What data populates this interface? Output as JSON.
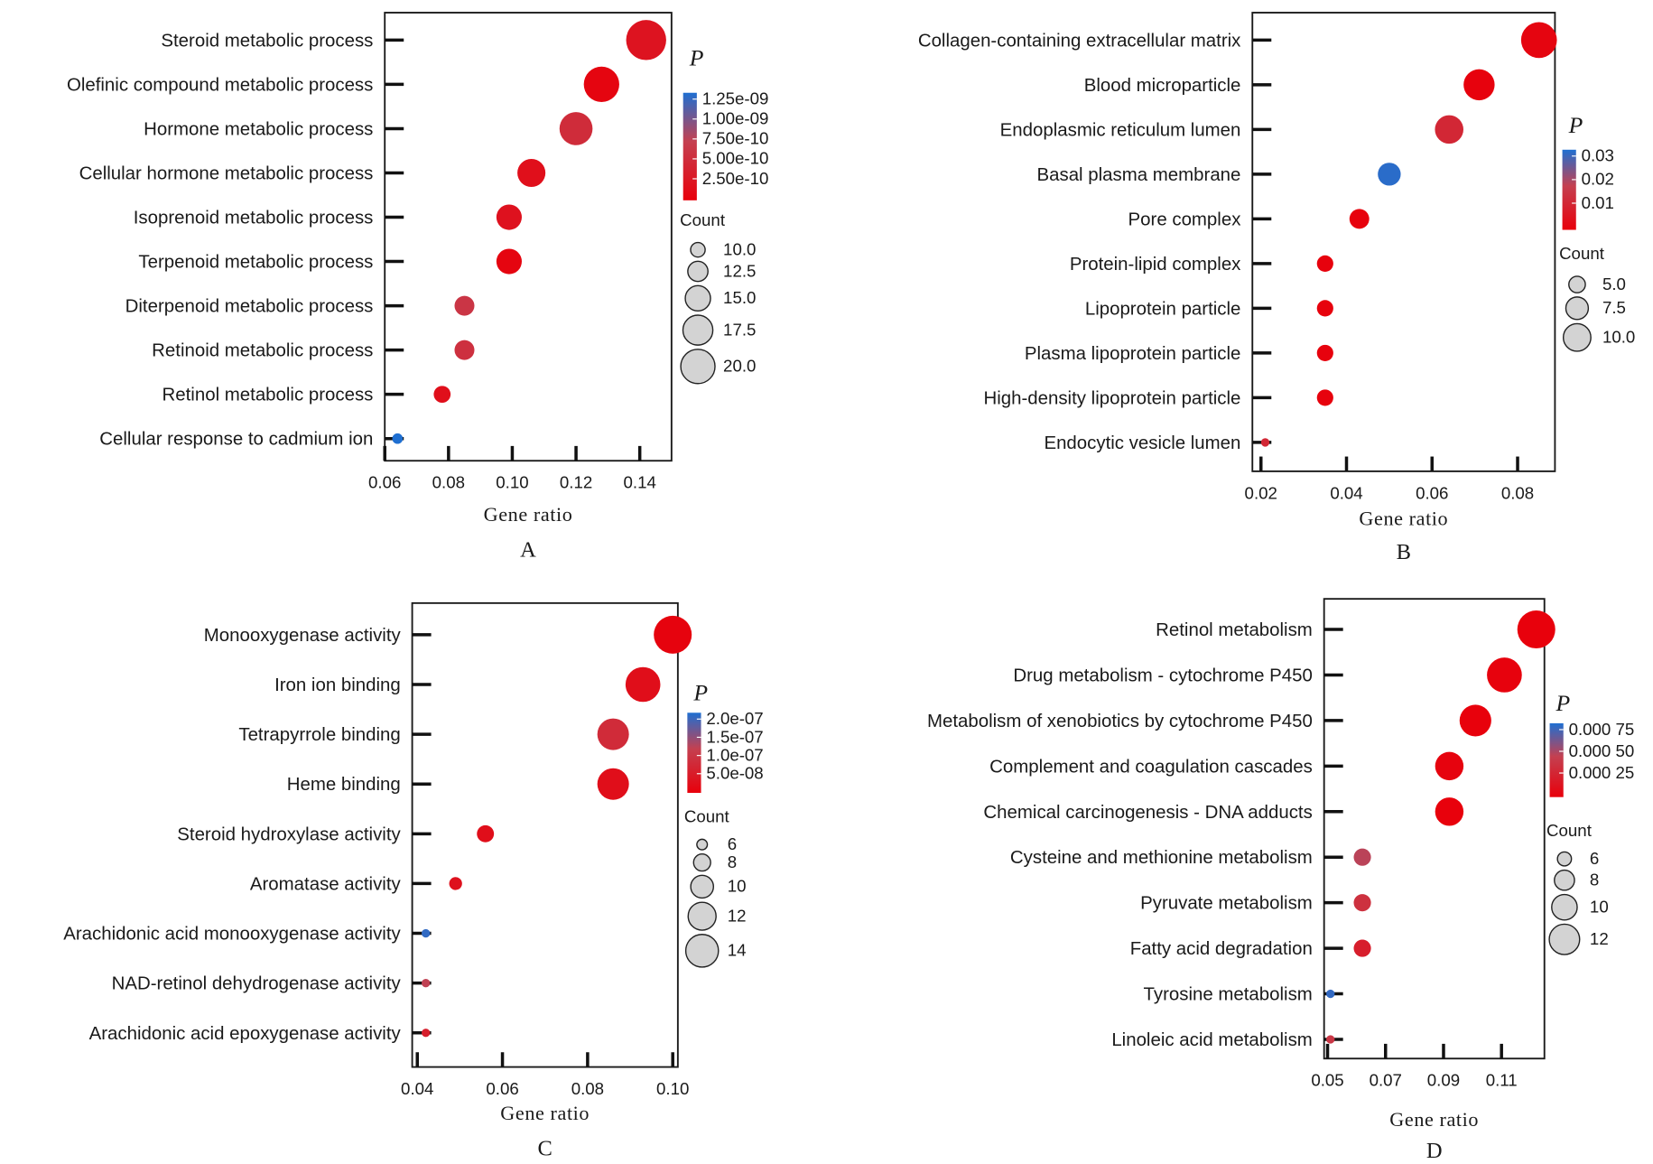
{
  "chart_data": [
    {
      "type": "scatter",
      "subtype": "bubble",
      "panel_label": "A",
      "xlabel": "Gene ratio",
      "ylabel": "",
      "xlim": [
        0.06,
        0.145
      ],
      "xticks": [
        0.06,
        0.08,
        0.1,
        0.12,
        0.14
      ],
      "xtick_labels": [
        "0.06",
        "0.08",
        "0.10",
        "0.12",
        "0.14"
      ],
      "categories": [
        "Steroid metabolic process",
        "Olefinic compound metabolic process",
        "Hormone metabolic process",
        "Cellular hormone metabolic process",
        "Isoprenoid metabolic process",
        "Terpenoid metabolic process",
        "Diterpenoid metabolic process",
        "Retinoid metabolic process",
        "Retinol metabolic process",
        "Cellular response to cadmium ion"
      ],
      "gene_ratio": [
        0.142,
        0.128,
        0.12,
        0.106,
        0.099,
        0.099,
        0.085,
        0.085,
        0.078,
        0.064
      ],
      "count": [
        20,
        18,
        17,
        15,
        14,
        14,
        12,
        12,
        11,
        9
      ],
      "p_value": [
        3e-10,
        1.5e-10,
        5.5e-10,
        2.5e-10,
        2.8e-10,
        1.5e-10,
        6.5e-10,
        6e-10,
        2.5e-10,
        1.3e-09
      ],
      "color_legend": {
        "title": "P",
        "ticks": [
          "1.25e-09",
          "1.00e-09",
          "7.50e-10",
          "5.00e-10",
          "2.50e-10"
        ],
        "range": [
          1e-10,
          1.3e-09
        ],
        "low_color": "#e8000b",
        "high_color": "#1f6fd1"
      },
      "size_legend": {
        "title": "Count",
        "values": [
          10.0,
          12.5,
          15.0,
          17.5,
          20.0
        ],
        "labels": [
          "10.0",
          "12.5",
          "15.0",
          "17.5",
          "20.0"
        ]
      },
      "grid": false,
      "legend_position": "right"
    },
    {
      "type": "scatter",
      "subtype": "bubble",
      "panel_label": "B",
      "xlabel": "Gene ratio",
      "ylabel": "",
      "xlim": [
        0.018,
        0.088
      ],
      "xticks": [
        0.02,
        0.04,
        0.06,
        0.08
      ],
      "xtick_labels": [
        "0.02",
        "0.04",
        "0.06",
        "0.08"
      ],
      "categories": [
        "Collagen-containing extracellular matrix",
        "Blood microparticle",
        "Endoplasmic reticulum lumen",
        "Basal plasma membrane",
        "Pore complex",
        "Protein-lipid complex",
        "Lipoprotein particle",
        "Plasma lipoprotein particle",
        "High-density lipoprotein particle",
        "Endocytic vesicle lumen"
      ],
      "gene_ratio": [
        0.085,
        0.071,
        0.064,
        0.05,
        0.043,
        0.035,
        0.035,
        0.035,
        0.035,
        0.021
      ],
      "count": [
        12,
        10,
        9,
        7,
        6,
        5,
        5,
        5,
        5,
        3
      ],
      "p_value": [
        0.002,
        0.001,
        0.012,
        0.034,
        0.001,
        0.001,
        0.001,
        0.001,
        0.001,
        0.012
      ],
      "color_legend": {
        "title": "P",
        "ticks": [
          "0.03",
          "0.02",
          "0.01"
        ],
        "range": [
          0.0005,
          0.035
        ],
        "low_color": "#e8000b",
        "high_color": "#1f6fd1"
      },
      "size_legend": {
        "title": "Count",
        "values": [
          5.0,
          7.5,
          10.0
        ],
        "labels": [
          "5.0",
          "7.5",
          "10.0"
        ]
      },
      "grid": false,
      "legend_position": "right"
    },
    {
      "type": "scatter",
      "subtype": "bubble",
      "panel_label": "C",
      "xlabel": "Gene ratio",
      "ylabel": "",
      "xlim": [
        0.039,
        0.101
      ],
      "xticks": [
        0.04,
        0.06,
        0.08,
        0.1
      ],
      "xtick_labels": [
        "0.04",
        "0.06",
        "0.08",
        "0.10"
      ],
      "categories": [
        "Monooxygenase activity",
        "Iron ion binding",
        "Tetrapyrrole binding",
        "Heme binding",
        "Steroid hydroxylase activity",
        "Aromatase activity",
        "Arachidonic acid monooxygenase activity",
        "NAD-retinol dehydrogenase activity",
        "Arachidonic acid epoxygenase activity"
      ],
      "gene_ratio": [
        0.1,
        0.093,
        0.086,
        0.086,
        0.056,
        0.049,
        0.042,
        0.042,
        0.042
      ],
      "count": [
        14,
        13,
        12,
        12,
        8,
        7,
        6,
        6,
        6
      ],
      "p_value": [
        1e-08,
        3e-08,
        8e-08,
        3e-08,
        3e-08,
        3.5e-08,
        2e-07,
        1.2e-07,
        6e-08
      ],
      "color_legend": {
        "title": "P",
        "ticks": [
          "2.0e-07",
          "1.5e-07",
          "1.0e-07",
          "5.0e-08"
        ],
        "range": [
          5e-09,
          2.1e-07
        ],
        "low_color": "#e8000b",
        "high_color": "#1f6fd1"
      },
      "size_legend": {
        "title": "Count",
        "values": [
          6,
          8,
          10,
          12,
          14
        ],
        "labels": [
          "6",
          "8",
          "10",
          "12",
          "14"
        ]
      },
      "grid": false,
      "legend_position": "right"
    },
    {
      "type": "scatter",
      "subtype": "bubble",
      "panel_label": "D",
      "xlabel": "Gene ratio",
      "ylabel": "",
      "xlim": [
        0.048,
        0.125
      ],
      "xticks": [
        0.05,
        0.07,
        0.09,
        0.11
      ],
      "xtick_labels": [
        "0.05",
        "0.07",
        "0.09",
        "0.11"
      ],
      "categories": [
        "Retinol metabolism",
        "Drug metabolism - cytochrome P450",
        "Metabolism of xenobiotics by cytochrome P450",
        "Complement and coagulation cascades",
        "Chemical carcinogenesis - DNA adducts",
        "Cysteine and methionine metabolism",
        "Pyruvate metabolism",
        "Fatty acid degradation",
        "Tyrosine metabolism",
        "Linoleic acid metabolism"
      ],
      "gene_ratio": [
        0.122,
        0.111,
        0.101,
        0.092,
        0.092,
        0.062,
        0.062,
        0.062,
        0.051,
        0.051
      ],
      "count": [
        13,
        12,
        11,
        10,
        10,
        7,
        7,
        7,
        5,
        5
      ],
      "p_value": [
        1e-05,
        2e-05,
        1e-05,
        3e-05,
        1e-05,
        0.00055,
        0.0004,
        0.00025,
        0.0009,
        0.00045
      ],
      "color_legend": {
        "title": "P",
        "ticks": [
          "0.000 75",
          "0.000 50",
          "0.000 25"
        ],
        "range": [
          5e-06,
          0.00095
        ],
        "low_color": "#e8000b",
        "high_color": "#1f6fd1"
      },
      "size_legend": {
        "title": "Count",
        "values": [
          6,
          8,
          10,
          12
        ],
        "labels": [
          "6",
          "8",
          "10",
          "12"
        ]
      },
      "grid": false,
      "legend_position": "right"
    }
  ]
}
